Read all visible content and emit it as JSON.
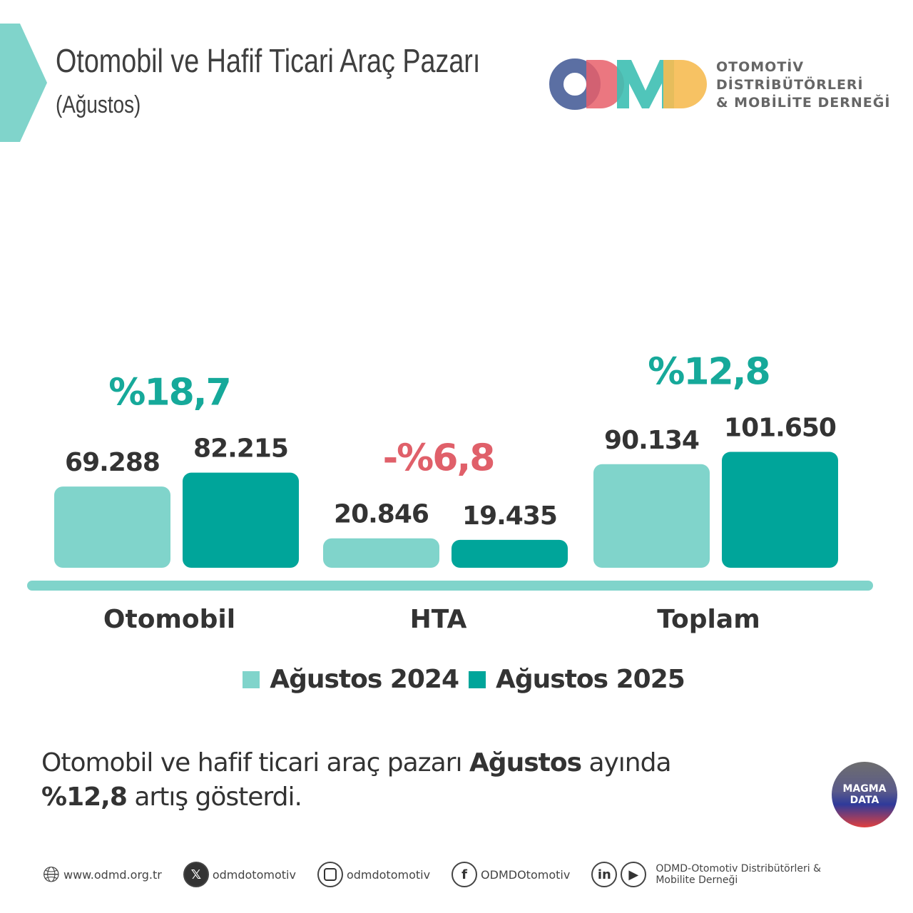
{
  "header": {
    "title": "Otomobil ve Hafif Ticari Araç Pazarı",
    "subtitle": "(Ağustos)",
    "accent_color": "#80d4cb"
  },
  "logo": {
    "mark": "ODMD",
    "text_lines": [
      "OTOMOTİV",
      "DİSTRİBÜTÖRLERİ",
      "& MOBİLİTE DERNEĞİ"
    ]
  },
  "chart_data": {
    "type": "bar",
    "categories": [
      "Otomobil",
      "HTA",
      "Toplam"
    ],
    "series": [
      {
        "name": "Ağustos 2024",
        "values": [
          69288,
          20846,
          90134
        ],
        "labels": [
          "69.288",
          "20.846",
          "90.134"
        ],
        "color": "#80d4cb"
      },
      {
        "name": "Ağustos 2025",
        "values": [
          82215,
          19435,
          101650
        ],
        "labels": [
          "82.215",
          "19.435",
          "101.650"
        ],
        "color": "#00a59a"
      }
    ],
    "change_labels": [
      "%18,7",
      "-%6,8",
      "%12,8"
    ],
    "change_colors": {
      "positive": "#16a99a",
      "negative": "#e0606a"
    },
    "legend_position": "bottom",
    "grid": false
  },
  "summary": {
    "part1": "Otomobil ve hafif ticari araç pazarı ",
    "bold1": "Ağustos",
    "part2": " ayında",
    "bold2": "%12,8",
    "part3": " artış gösterdi."
  },
  "badge": {
    "line1": "MAGMA",
    "line2": "DATA"
  },
  "footer": {
    "website": "www.odmd.org.tr",
    "x": "odmdotomotiv",
    "instagram": "odmdotomotiv",
    "facebook": "ODMDOtomotiv",
    "linkedin_youtube_line1": "ODMD-Otomotiv Distribütörleri &",
    "linkedin_youtube_line2": "Mobilite Derneği"
  }
}
